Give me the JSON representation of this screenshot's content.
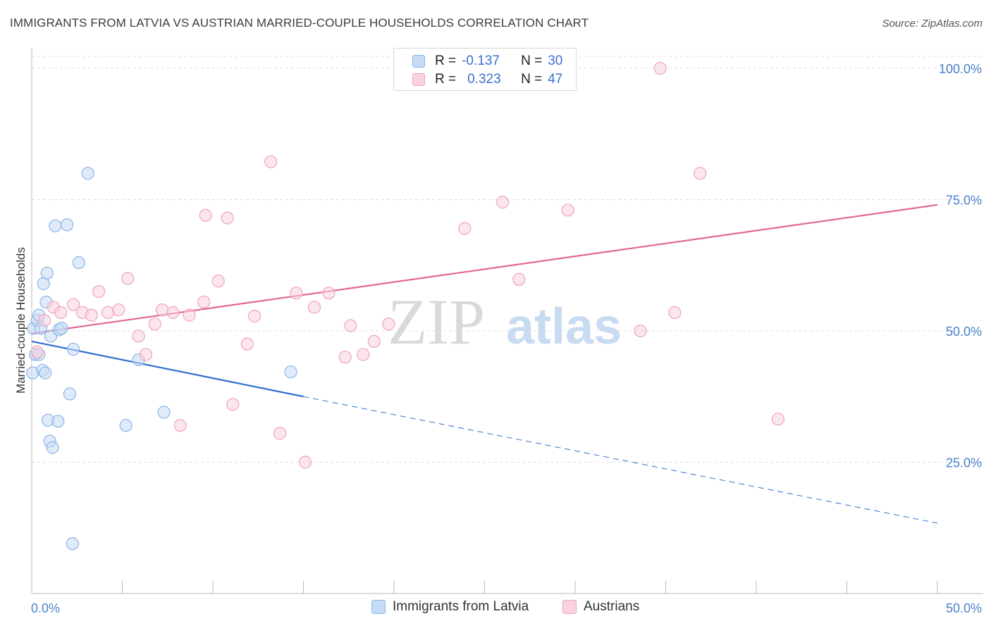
{
  "title": "IMMIGRANTS FROM LATVIA VS AUSTRIAN MARRIED-COUPLE HOUSEHOLDS CORRELATION CHART",
  "source": "Source: ZipAtlas.com",
  "watermark": {
    "zip": "ZIP",
    "atlas": "atlas"
  },
  "legend": {
    "r_label": "R =",
    "n_label": "N =",
    "rows": [
      {
        "r": "-0.137",
        "n": "30"
      },
      {
        "r": "0.323",
        "n": "47"
      }
    ]
  },
  "chart_data": {
    "type": "scatter",
    "ylabel": "Married-couple Households",
    "xlim": [
      0,
      50
    ],
    "ylim": [
      0,
      100
    ],
    "x_tick_labels": [
      "0.0%",
      "50.0%"
    ],
    "y_ticks": [
      {
        "value": 25,
        "label": "25.0%"
      },
      {
        "value": 50,
        "label": "50.0%"
      },
      {
        "value": 75,
        "label": "75.0%"
      },
      {
        "value": 100,
        "label": "100.0%"
      }
    ],
    "grid": true,
    "legend_position": "top-center",
    "series": [
      {
        "name": "Immigrants from Latvia",
        "color": "#8db4e8",
        "fill": "#c6dbf6",
        "line_color": "#2f6fce",
        "regression": {
          "x": [
            0,
            15
          ],
          "y": [
            48,
            37.5
          ],
          "dashed_to": [
            50,
            13.4
          ]
        },
        "points": [
          [
            0.05,
            42
          ],
          [
            0.1,
            50.5
          ],
          [
            0.2,
            45.5
          ],
          [
            0.3,
            52
          ],
          [
            0.4,
            53
          ],
          [
            0.5,
            50.5
          ],
          [
            0.6,
            42.5
          ],
          [
            0.65,
            59
          ],
          [
            0.75,
            42
          ],
          [
            0.8,
            55.5
          ],
          [
            0.85,
            61
          ],
          [
            0.9,
            33
          ],
          [
            1.0,
            29
          ],
          [
            1.05,
            49
          ],
          [
            1.15,
            27.8
          ],
          [
            1.3,
            70
          ],
          [
            1.45,
            32.8
          ],
          [
            1.5,
            50.2
          ],
          [
            1.65,
            50.5
          ],
          [
            1.95,
            70.2
          ],
          [
            2.1,
            38
          ],
          [
            2.25,
            9.5
          ],
          [
            2.3,
            46.5
          ],
          [
            2.6,
            63
          ],
          [
            3.1,
            80
          ],
          [
            5.2,
            32
          ],
          [
            5.9,
            44.5
          ],
          [
            7.3,
            34.5
          ],
          [
            14.3,
            42.2
          ],
          [
            0.4,
            45.5
          ]
        ]
      },
      {
        "name": "Austrians",
        "color": "#f0a3bb",
        "fill": "#f9d2de",
        "line_color": "#e0688f",
        "regression": {
          "x": [
            0,
            50
          ],
          "y": [
            49.5,
            74
          ]
        },
        "points": [
          [
            0.3,
            46
          ],
          [
            0.7,
            52
          ],
          [
            1.2,
            54.5
          ],
          [
            1.6,
            53.5
          ],
          [
            2.3,
            55
          ],
          [
            2.8,
            53.5
          ],
          [
            3.3,
            53
          ],
          [
            3.7,
            57.5
          ],
          [
            4.2,
            53.5
          ],
          [
            4.8,
            54
          ],
          [
            5.3,
            60
          ],
          [
            5.9,
            49
          ],
          [
            6.3,
            45.5
          ],
          [
            6.8,
            51.3
          ],
          [
            7.2,
            54
          ],
          [
            7.8,
            53.5
          ],
          [
            8.2,
            32
          ],
          [
            8.7,
            53
          ],
          [
            9.5,
            55.5
          ],
          [
            9.6,
            72
          ],
          [
            10.3,
            59.5
          ],
          [
            10.8,
            71.5
          ],
          [
            11.1,
            36
          ],
          [
            11.9,
            47.5
          ],
          [
            12.3,
            52.8
          ],
          [
            13.2,
            82.2
          ],
          [
            13.7,
            30.5
          ],
          [
            14.6,
            57.2
          ],
          [
            15.1,
            25
          ],
          [
            15.6,
            54.5
          ],
          [
            16.4,
            57.2
          ],
          [
            17.3,
            45
          ],
          [
            17.6,
            51
          ],
          [
            18.3,
            45.5
          ],
          [
            18.9,
            48
          ],
          [
            19.7,
            51.3
          ],
          [
            20.5,
            100
          ],
          [
            23.9,
            69.5
          ],
          [
            26,
            74.5
          ],
          [
            26.9,
            59.8
          ],
          [
            27.5,
            100
          ],
          [
            29.6,
            73
          ],
          [
            33.6,
            50
          ],
          [
            34.7,
            100
          ],
          [
            35.5,
            53.5
          ],
          [
            36.9,
            80
          ],
          [
            41.2,
            33.2
          ]
        ]
      }
    ]
  }
}
